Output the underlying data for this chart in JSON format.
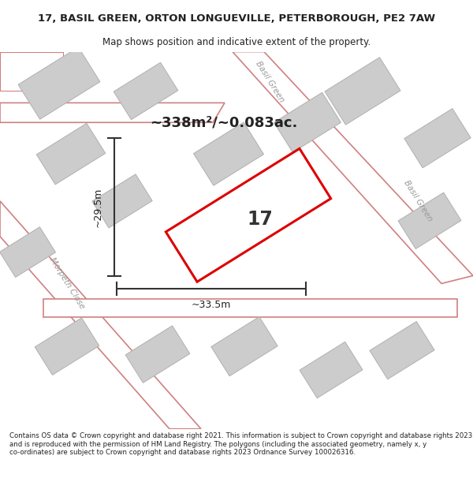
{
  "title_line1": "17, BASIL GREEN, ORTON LONGUEVILLE, PETERBOROUGH, PE2 7AW",
  "title_line2": "Map shows position and indicative extent of the property.",
  "footer_text": "Contains OS data © Crown copyright and database right 2021. This information is subject to Crown copyright and database rights 2023 and is reproduced with the permission of HM Land Registry. The polygons (including the associated geometry, namely x, y co-ordinates) are subject to Crown copyright and database rights 2023 Ordnance Survey 100026316.",
  "area_label": "~338m²/~0.083ac.",
  "width_label": "~33.5m",
  "height_label": "~29.5m",
  "plot_number": "17",
  "map_bg": "#eeeeee",
  "road_fill": "#ffffff",
  "road_stroke": "#d08080",
  "building_fill": "#cccccc",
  "building_stroke": "#b0b0b0",
  "red_color": "#dd0000",
  "text_dark": "#222222",
  "text_gray": "#999999"
}
